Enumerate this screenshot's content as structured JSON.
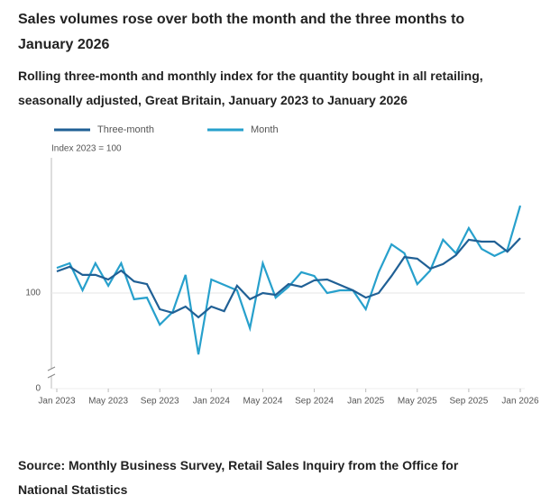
{
  "chart_data": {
    "type": "line",
    "title": "Sales volumes rose over both the month and the three months to January 2026",
    "subtitle": "Rolling three-month and monthly index for the quantity bought in all retailing, seasonally adjusted, Great Britain, January 2023 to January 2026",
    "y_label": "Index 2023 = 100",
    "source": "Source: Monthly Business Survey, Retail Sales Inquiry from the Office for National Statistics",
    "categories": [
      "Jan 2023",
      null,
      null,
      null,
      "May 2023",
      null,
      null,
      null,
      "Sep 2023",
      null,
      null,
      null,
      "Jan 2024",
      null,
      null,
      null,
      "May 2024",
      null,
      null,
      null,
      "Sep 2024",
      null,
      null,
      null,
      "Jan 2025",
      null,
      null,
      null,
      "May 2025",
      null,
      null,
      null,
      "Sep 2025",
      null,
      null,
      null,
      "Jan 2026"
    ],
    "series": [
      {
        "name": "Three-month",
        "color": "#206095",
        "values": [
          100.8,
          100.97,
          100.67,
          100.67,
          100.5,
          100.83,
          100.43,
          100.33,
          99.4,
          99.27,
          99.5,
          99.1,
          99.5,
          99.33,
          100.27,
          99.77,
          100,
          99.93,
          100.33,
          100.23,
          100.47,
          100.5,
          100.3,
          100.1,
          99.83,
          100,
          100.63,
          101.33,
          101.27,
          100.9,
          101.07,
          101.4,
          101.97,
          101.9,
          101.9,
          101.53,
          102.03
        ]
      },
      {
        "name": "Month",
        "color": "#27a0cc",
        "values": [
          100.93,
          101.1,
          100.1,
          101.1,
          100.27,
          101.1,
          99.77,
          99.83,
          98.83,
          99.3,
          100.67,
          97.73,
          100.5,
          100.3,
          100.1,
          98.7,
          101.1,
          99.83,
          100.23,
          100.77,
          100.63,
          100,
          100.1,
          100.1,
          99.4,
          100.77,
          101.8,
          101.47,
          100.33,
          100.83,
          101.97,
          101.47,
          102.4,
          101.63,
          101.37,
          101.6,
          103.23
        ]
      }
    ],
    "ylim": [
      97,
      105
    ],
    "yticks": [
      0,
      100
    ],
    "axis_break": true,
    "grid": true,
    "legend": "top-left"
  }
}
